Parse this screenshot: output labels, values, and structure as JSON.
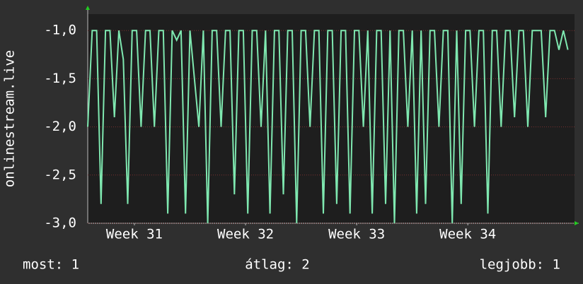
{
  "chart_data": {
    "type": "line",
    "y_label": "onlinestream.live",
    "x": [
      31.08,
      31.12,
      31.16,
      31.2,
      31.24,
      31.28,
      31.32,
      31.36,
      31.4,
      31.44,
      31.48,
      31.52,
      31.56,
      31.6,
      31.64,
      31.68,
      31.72,
      31.76,
      31.8,
      31.84,
      31.88,
      31.92,
      31.96,
      32.0,
      32.04,
      32.08,
      32.12,
      32.16,
      32.2,
      32.24,
      32.28,
      32.32,
      32.36,
      32.4,
      32.44,
      32.48,
      32.52,
      32.56,
      32.6,
      32.64,
      32.68,
      32.72,
      32.76,
      32.8,
      32.84,
      32.88,
      32.92,
      32.96,
      33.0,
      33.04,
      33.08,
      33.12,
      33.16,
      33.2,
      33.24,
      33.28,
      33.32,
      33.36,
      33.4,
      33.44,
      33.48,
      33.52,
      33.56,
      33.6,
      33.64,
      33.68,
      33.72,
      33.76,
      33.8,
      33.84,
      33.88,
      33.92,
      33.96,
      34.0,
      34.04,
      34.08,
      34.12,
      34.16,
      34.2,
      34.24,
      34.28,
      34.32,
      34.36,
      34.4,
      34.44,
      34.48,
      34.52,
      34.56,
      34.6,
      34.64,
      34.68,
      34.72,
      34.76,
      34.8,
      34.84,
      34.88,
      34.92,
      34.96,
      35.0,
      35.04,
      35.08,
      35.12,
      35.16,
      35.2,
      35.24,
      35.28,
      35.32,
      35.36,
      35.4
    ],
    "values": [
      -2.0,
      -1.0,
      -1.0,
      -2.8,
      -1.0,
      -1.0,
      -1.9,
      -1.0,
      -1.3,
      -2.8,
      -1.0,
      -1.0,
      -2.0,
      -1.0,
      -1.0,
      -2.0,
      -1.0,
      -1.0,
      -2.9,
      -1.0,
      -1.1,
      -1.0,
      -2.9,
      -1.0,
      -1.5,
      -2.0,
      -1.0,
      -3.0,
      -1.0,
      -1.0,
      -2.0,
      -1.0,
      -1.0,
      -2.7,
      -1.0,
      -1.0,
      -2.9,
      -1.0,
      -1.0,
      -2.0,
      -1.0,
      -2.9,
      -1.0,
      -1.0,
      -2.7,
      -1.0,
      -1.0,
      -3.0,
      -1.0,
      -1.0,
      -2.0,
      -1.0,
      -1.0,
      -2.9,
      -1.0,
      -1.0,
      -2.8,
      -1.0,
      -1.0,
      -2.9,
      -1.0,
      -1.0,
      -2.0,
      -1.0,
      -2.9,
      -1.0,
      -1.0,
      -2.8,
      -1.0,
      -3.0,
      -1.0,
      -1.0,
      -2.0,
      -1.0,
      -2.9,
      -1.0,
      -2.8,
      -1.0,
      -1.0,
      -2.0,
      -1.0,
      -1.0,
      -3.0,
      -1.0,
      -2.8,
      -1.0,
      -1.0,
      -2.0,
      -1.0,
      -1.0,
      -2.9,
      -1.0,
      -1.0,
      -2.0,
      -1.0,
      -1.0,
      -1.9,
      -1.0,
      -1.0,
      -2.0,
      -1.0,
      -1.0,
      -1.0,
      -1.9,
      -1.0,
      -1.0,
      -1.2,
      -1.0,
      -1.2
    ],
    "color": "#7fe8b0",
    "xlim": [
      31.08,
      35.46
    ],
    "xticks": [
      {
        "value": 31.5,
        "label": "Week 31"
      },
      {
        "value": 32.5,
        "label": "Week 32"
      },
      {
        "value": 33.5,
        "label": "Week 33"
      },
      {
        "value": 34.5,
        "label": "Week 34"
      }
    ],
    "ylim": [
      -3.0,
      -0.83
    ],
    "yticks": [
      {
        "value": -3.0,
        "label": "-3,0"
      },
      {
        "value": -2.5,
        "label": "-2,5"
      },
      {
        "value": -2.0,
        "label": "-2,0"
      },
      {
        "value": -1.5,
        "label": "-1,5"
      },
      {
        "value": -1.0,
        "label": "-1,0"
      }
    ],
    "grid": true,
    "stats": [
      "most: 1",
      "átlag: 2",
      "legjobb: 1"
    ]
  }
}
